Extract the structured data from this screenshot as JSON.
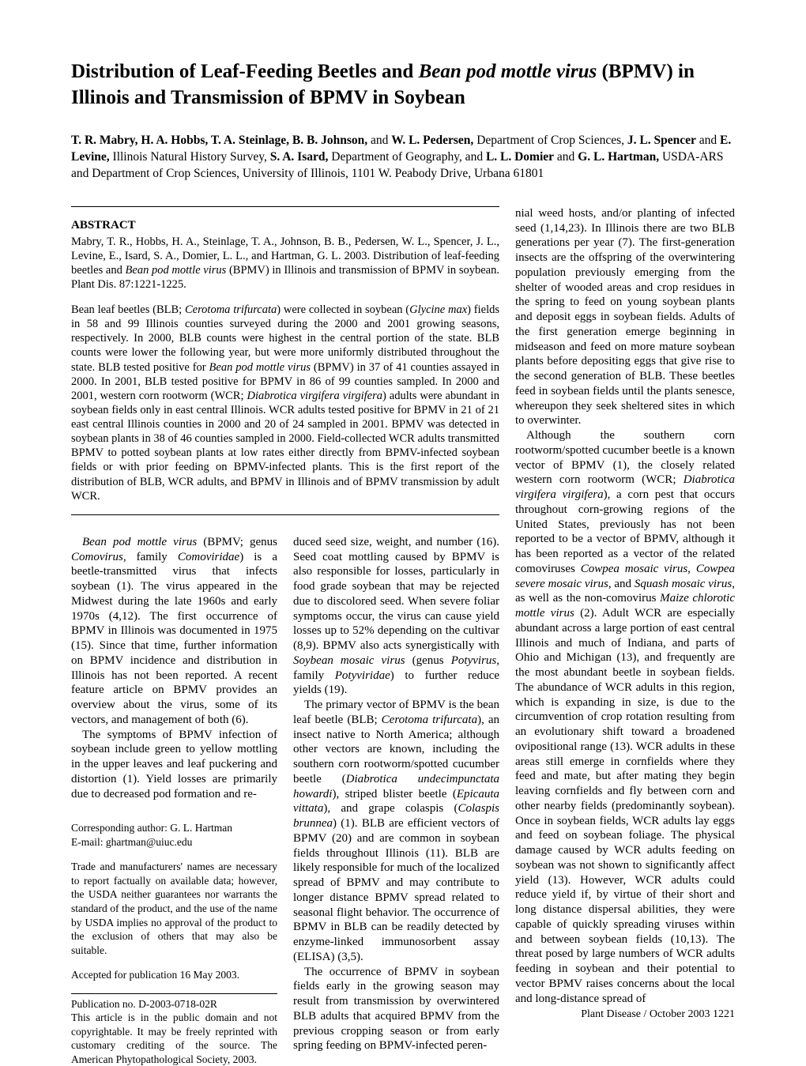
{
  "title_plain1": "Distribution of Leaf-Feeding Beetles and ",
  "title_italic": "Bean pod mottle virus",
  "title_plain2": " (BPMV) in Illinois and Transmission of BPMV in Soybean",
  "authors_html": "<span class=\"bold\">T. R. Mabry, H. A. Hobbs, T. A. Steinlage, B. B. Johnson,</span> and <span class=\"bold\">W. L. Pedersen,</span> Department of Crop Sciences, <span class=\"bold\">J. L. Spencer</span> and <span class=\"bold\">E. Levine,</span> Illinois Natural History Survey, <span class=\"bold\">S. A. Isard,</span> Department of Geography, and <span class=\"bold\">L. L. Domier</span> and <span class=\"bold\">G. L. Hartman,</span> USDA-ARS and Department of Crop Sciences, University of Illinois, 1101 W. Peabody Drive, Urbana 61801",
  "abstract_heading": "ABSTRACT",
  "abstract_citation_html": "Mabry, T. R., Hobbs, H. A., Steinlage, T. A., Johnson, B. B., Pedersen, W. L., Spencer, J. L., Levine, E., Isard, S. A., Domier, L. L., and Hartman, G. L. 2003. Distribution of leaf-feeding beetles and <span class=\"italic\">Bean pod mottle virus</span> (BPMV) in Illinois and transmission of BPMV in soybean. Plant Dis. 87:1221-1225.",
  "abstract_body_html": "Bean leaf beetles (BLB; <span class=\"italic\">Cerotoma trifurcata</span>) were collected in soybean (<span class=\"italic\">Glycine max</span>) fields in 58 and 99 Illinois counties surveyed during the 2000 and 2001 growing seasons, respectively. In 2000, BLB counts were highest in the central portion of the state. BLB counts were lower the following year, but were more uniformly distributed throughout the state. BLB tested positive for <span class=\"italic\">Bean pod mottle virus</span> (BPMV) in 37 of 41 counties assayed in 2000. In 2001, BLB tested positive for BPMV in 86 of 99 counties sampled. In 2000 and 2001, western corn rootworm (WCR; <span class=\"italic\">Diabrotica virgifera virgifera</span>) adults were abundant in soybean fields only in east central Illinois. WCR adults tested positive for BPMV in 21 of 21 east central Illinois counties in 2000 and 20 of 24 sampled in 2001. BPMV was detected in soybean plants in 38 of 46 counties sampled in 2000. Field-collected WCR adults transmitted BPMV to potted soybean plants at low rates either directly from BPMV-infected soybean fields or with prior feeding on BPMV-infected plants. This is the first report of the distribution of BLB, WCR adults, and BPMV in Illinois and of BPMV transmission by adult WCR.",
  "body_left_col1_p1_html": "<span class=\"italic\">Bean pod mottle virus</span> (BPMV; genus <span class=\"italic\">Comovirus</span>, family <span class=\"italic\">Comoviridae</span>) is a beetle-transmitted virus that infects soybean (1). The virus appeared in the Midwest during the late 1960s and early 1970s (4,12). The first occurrence of BPMV in Illinois was documented in 1975 (15). Since that time, further information on BPMV incidence and distribution in Illinois has not been reported. A recent feature article on BPMV provides an overview about the virus, some of its vectors, and management of both (6).",
  "body_left_col1_p2_html": "The symptoms of BPMV infection of soybean include green to yellow mottling in the upper leaves and leaf puckering and distortion (1). Yield losses are primarily due to decreased pod formation and re-",
  "body_left_col2_p1_html": "duced seed size, weight, and number (16). Seed coat mottling caused by BPMV is also responsible for losses, particularly in food grade soybean that may be rejected due to discolored seed. When severe foliar symptoms occur, the virus can cause yield losses up to 52% depending on the cultivar (8,9). BPMV also acts synergistically with <span class=\"italic\">Soybean mosaic virus</span> (genus <span class=\"italic\">Potyvirus</span>, family <span class=\"italic\">Potyviridae</span>) to further reduce yields (19).",
  "body_left_col2_p2_html": "The primary vector of BPMV is the bean leaf beetle (BLB; <span class=\"italic\">Cerotoma trifurcata</span>), an insect native to North America; although other vectors are known, including the southern corn rootworm/spotted cucumber beetle (<span class=\"italic\">Diabrotica undecimpunctata howardi</span>), striped blister beetle (<span class=\"italic\">Epicauta vittata</span>), and grape colaspis (<span class=\"italic\">Colaspis brunnea</span>) (1). BLB are efficient vectors of BPMV (20) and are common in soybean fields throughout Illinois (11). BLB are likely responsible for much of the localized spread of BPMV and may contribute to longer distance BPMV spread related to seasonal flight behavior. The occurrence of BPMV in BLB can be readily detected by enzyme-linked immunosorbent assay (ELISA) (3,5).",
  "body_left_col2_p3_html": "The occurrence of BPMV in soybean fields early in the growing season may result from transmission by overwintered BLB adults that acquired BPMV from the previous cropping season or from early spring feeding on BPMV-infected peren-",
  "body_right_p1_html": "nial weed hosts, and/or planting of infected seed (1,14,23). In Illinois there are two BLB generations per year (7). The first-generation insects are the offspring of the overwintering population previously emerging from the shelter of wooded areas and crop residues in the spring to feed on young soybean plants and deposit eggs in soybean fields. Adults of the first generation emerge beginning in midseason and feed on more mature soybean plants before depositing eggs that give rise to the second generation of BLB. These beetles feed in soybean fields until the plants senesce, whereupon they seek sheltered sites in which to overwinter.",
  "body_right_p2_html": "Although the southern corn rootworm/spotted cucumber beetle is a known vector of BPMV (1), the closely related western corn rootworm (WCR; <span class=\"italic\">Diabrotica virgifera virgifera</span>), a corn pest that occurs throughout corn-growing regions of the United States, previously has not been reported to be a vector of BPMV, although it has been reported as a vector of the related comoviruses <span class=\"italic\">Cowpea mosaic virus</span>, <span class=\"italic\">Cowpea severe mosaic virus</span>, and <span class=\"italic\">Squash mosaic virus</span>, as well as the non-comovirus <span class=\"italic\">Maize chlorotic mottle virus</span> (2). Adult WCR are especially abundant across a large portion of east central Illinois and much of Indiana, and parts of Ohio and Michigan (13), and frequently are the most abundant beetle in soybean fields. The abundance of WCR adults in this region, which is expanding in size, is due to the circumvention of crop rotation resulting from an evolutionary shift toward a broadened ovipositional range (13). WCR adults in these areas still emerge in cornfields where they feed and mate, but after mating they begin leaving cornfields and fly between corn and other nearby fields (predominantly soybean). Once in soybean fields, WCR adults lay eggs and feed on soybean foliage. The physical damage caused by WCR adults feeding on soybean was not shown to significantly affect yield (13). However, WCR adults could reduce yield if, by virtue of their short and long distance dispersal abilities, they were capable of quickly spreading viruses within and between soybean fields (10,13). The threat posed by large numbers of WCR adults feeding in soybean and their potential to vector BPMV raises concerns about the local and long-distance spread of",
  "corr_author": "Corresponding author: G. L. Hartman",
  "corr_email": "E-mail: ghartman@uiuc.edu",
  "corr_trade": "Trade and manufacturers' names are necessary to report factually on available data; however, the USDA neither guarantees nor warrants the standard of the product, and the use of the name by USDA implies no approval of the product to the exclusion of others that may also be suitable.",
  "corr_accepted": "Accepted for publication 16 May 2003.",
  "corr_pubno": "Publication no. D-2003-0718-02R",
  "corr_copyright": "This article is in the public domain and not copyrightable. It may be freely reprinted with customary crediting of the source. The American Phytopathological Society, 2003.",
  "footer": "Plant Disease / October 2003   1221"
}
